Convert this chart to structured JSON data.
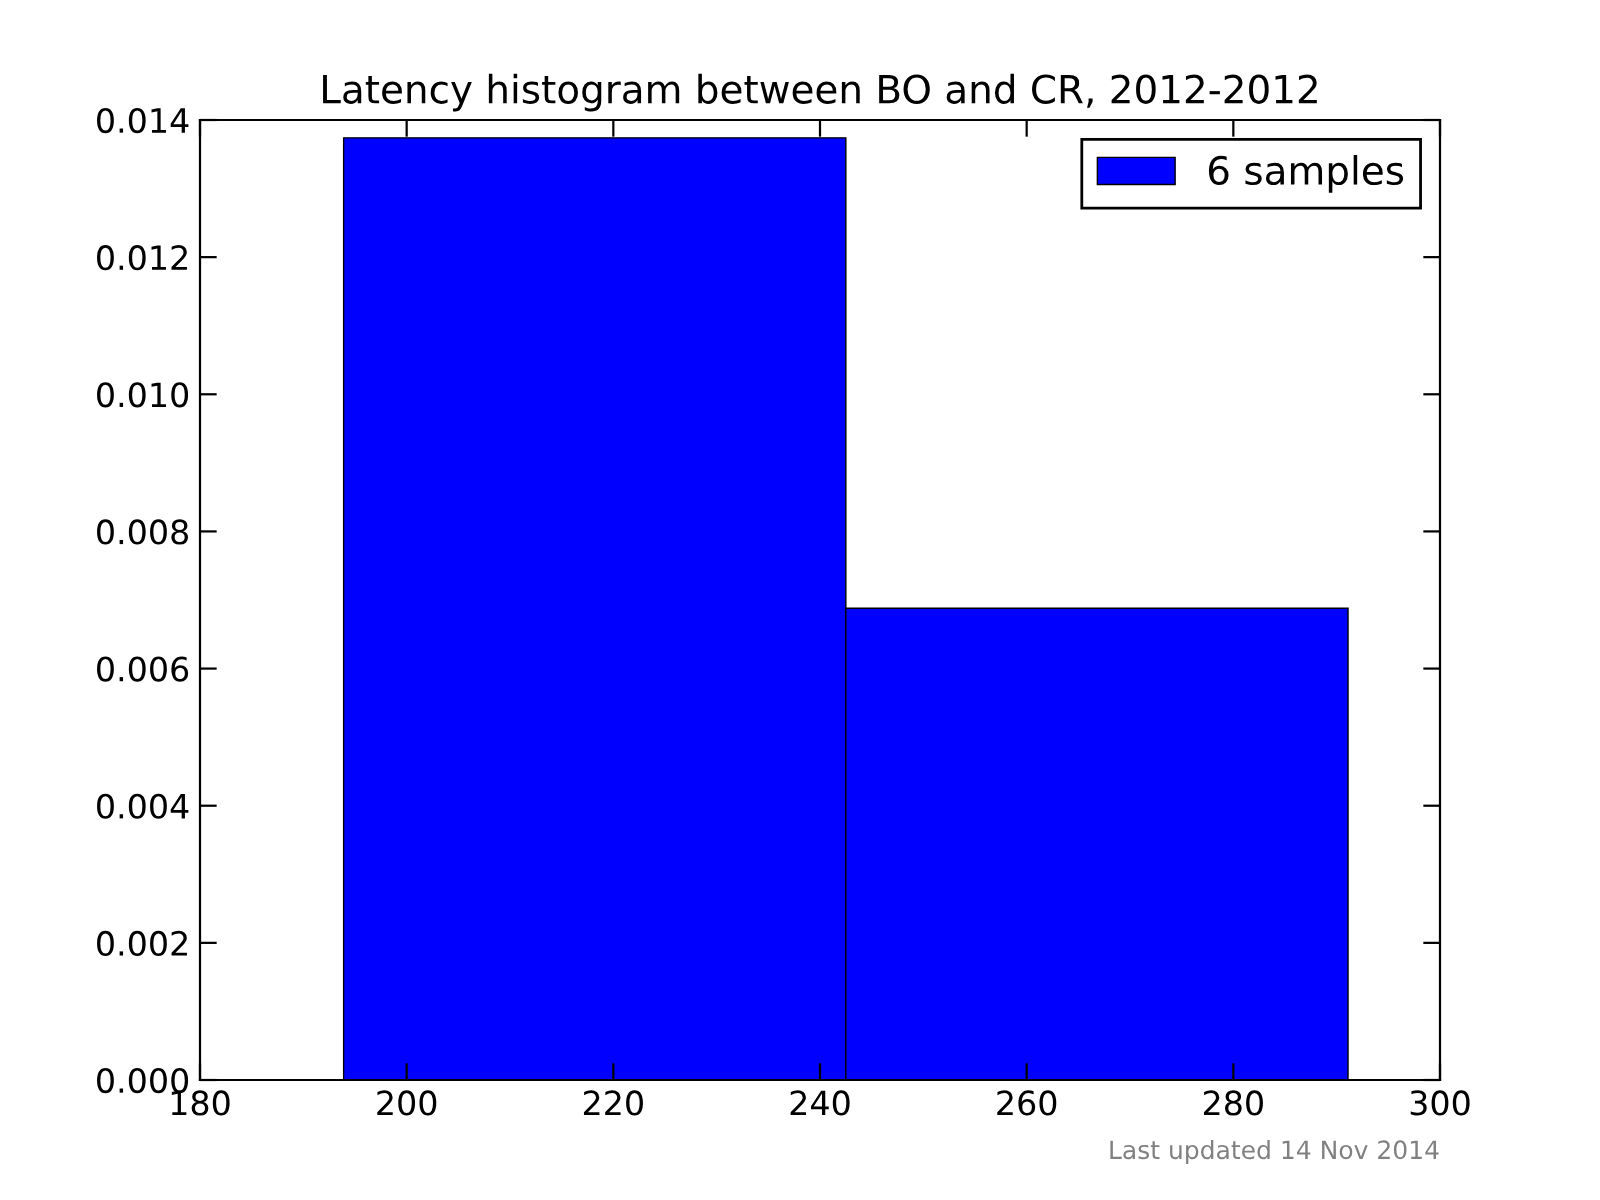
{
  "chart_data": {
    "type": "histogram",
    "title": "Latency histogram between BO and CR, 2012-2012",
    "bins": [
      193.9,
      242.5,
      291.1
    ],
    "series": [
      {
        "name": "6 samples",
        "color": "#0000ff",
        "values": [
          0.01374,
          0.00688
        ]
      }
    ],
    "xlim": [
      180,
      300
    ],
    "xticks": [
      180,
      200,
      220,
      240,
      260,
      280,
      300
    ],
    "ylim": [
      0,
      0.014
    ],
    "yticks": [
      {
        "value": 0,
        "label": "0.000"
      },
      {
        "value": 0.002,
        "label": "0.002"
      },
      {
        "value": 0.004,
        "label": "0.004"
      },
      {
        "value": 0.006,
        "label": "0.006"
      },
      {
        "value": 0.008,
        "label": "0.008"
      },
      {
        "value": 0.01,
        "label": "0.010"
      },
      {
        "value": 0.012,
        "label": "0.012"
      },
      {
        "value": 0.014,
        "label": "0.014"
      }
    ],
    "legend": "top right",
    "grid": false,
    "annotations": [
      "Last updated 14 Nov 2014"
    ]
  }
}
